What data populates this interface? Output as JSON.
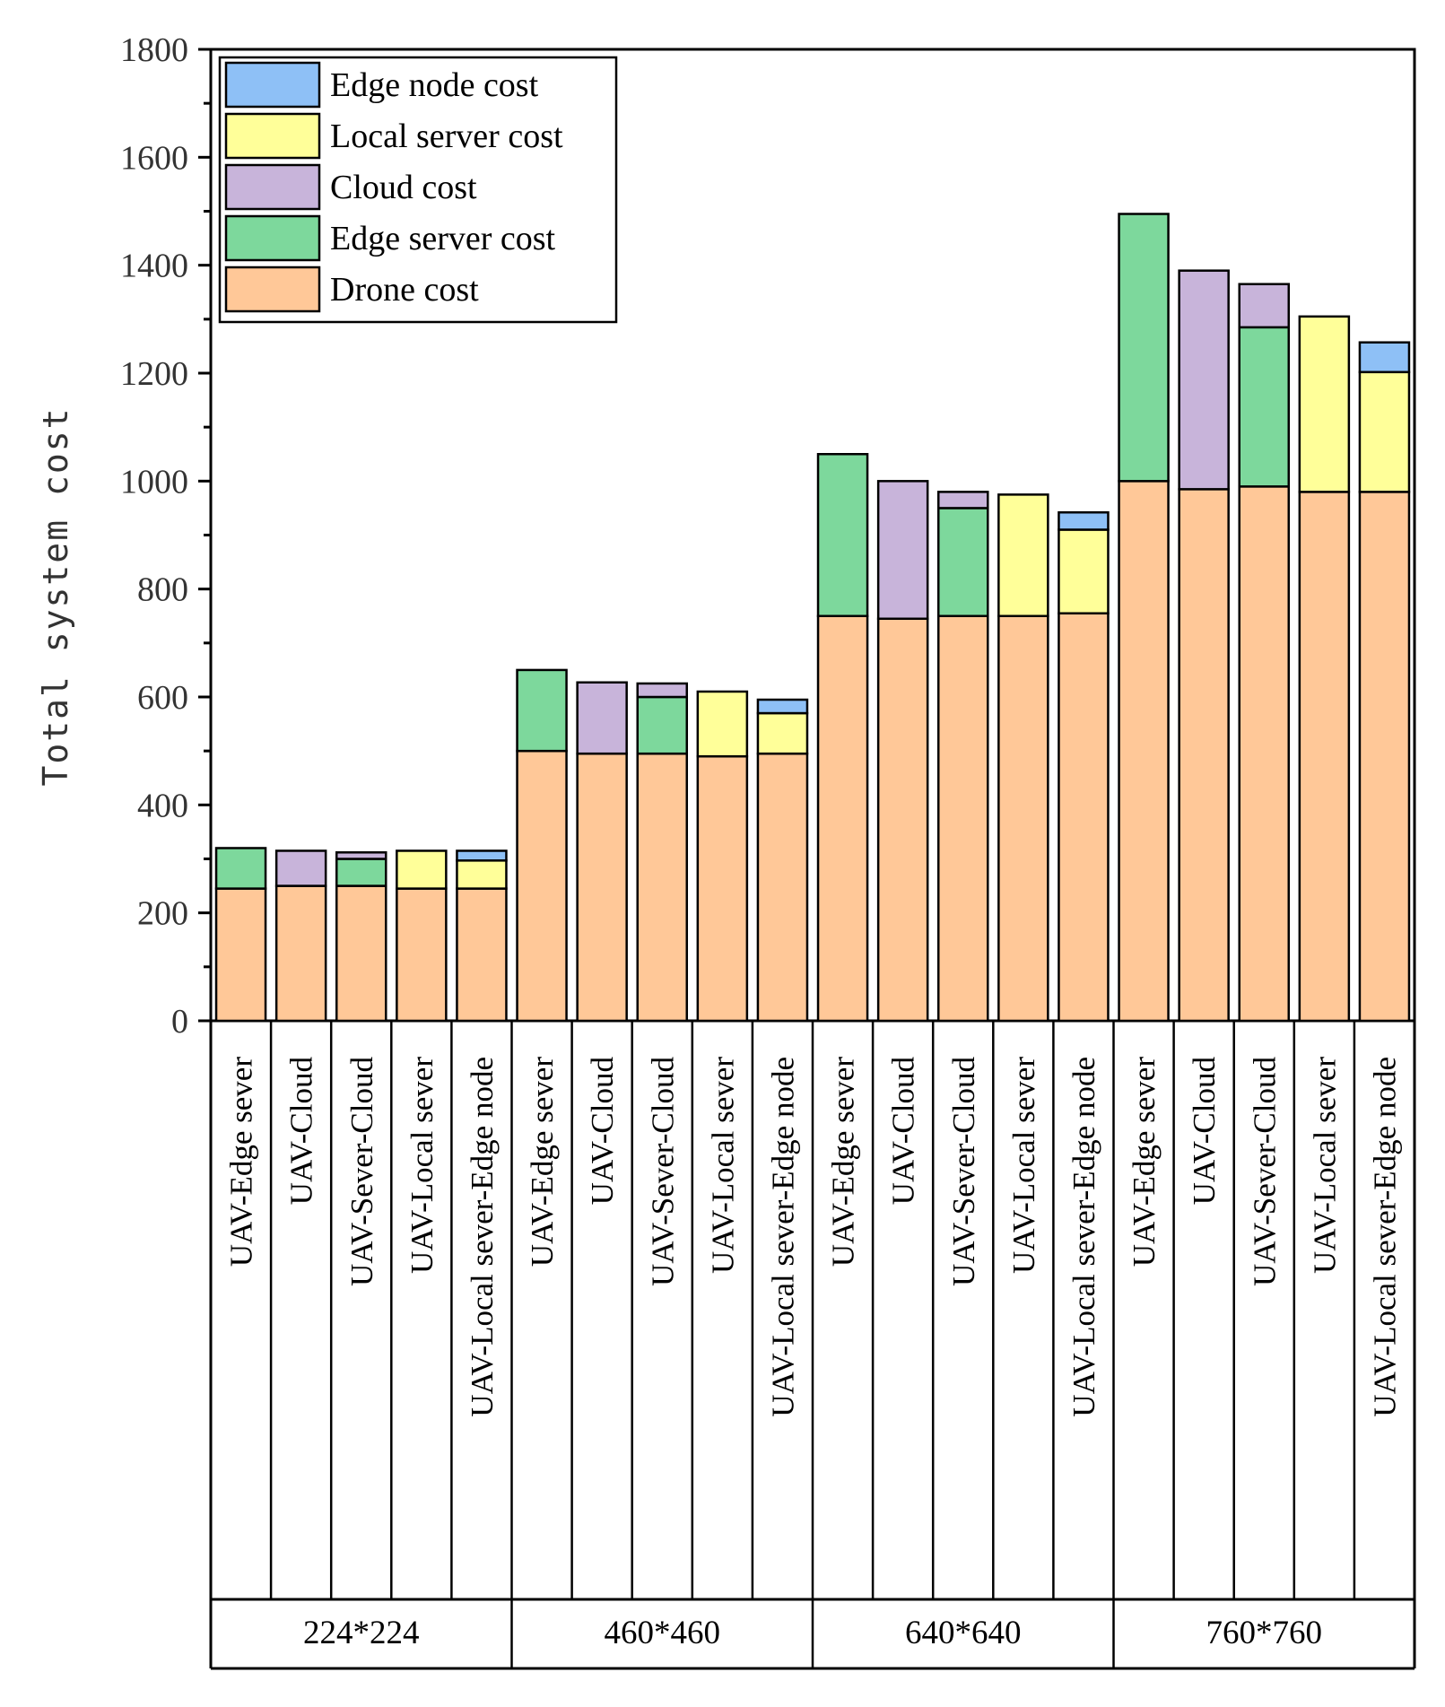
{
  "chart_data": {
    "type": "bar",
    "stacked": true,
    "title": "",
    "xlabel": "",
    "ylabel": "Total system cost",
    "ylim": [
      0,
      1800
    ],
    "yticks": [
      0,
      200,
      400,
      600,
      800,
      1000,
      1200,
      1400,
      1600,
      1800
    ],
    "legend_position": "top-left",
    "groups": [
      "224*224",
      "460*460",
      "640*640",
      "760*760"
    ],
    "categories": [
      "UAV-Edge sever",
      "UAV-Cloud",
      "UAV-Sever-Cloud",
      "UAV-Local sever",
      "UAV-Local sever-Edge node",
      "UAV-Edge sever",
      "UAV-Cloud",
      "UAV-Sever-Cloud",
      "UAV-Local sever",
      "UAV-Local sever-Edge node",
      "UAV-Edge sever",
      "UAV-Cloud",
      "UAV-Sever-Cloud",
      "UAV-Local sever",
      "UAV-Local sever-Edge node",
      "UAV-Edge sever",
      "UAV-Cloud",
      "UAV-Sever-Cloud",
      "UAV-Local sever",
      "UAV-Local sever-Edge node"
    ],
    "series": [
      {
        "name": "Drone cost",
        "color": "#FFC898",
        "values": [
          245,
          250,
          250,
          245,
          245,
          500,
          495,
          495,
          490,
          495,
          750,
          745,
          750,
          750,
          755,
          1000,
          985,
          990,
          980,
          980
        ]
      },
      {
        "name": "Edge server cost",
        "color": "#7DD89C",
        "values": [
          75,
          0,
          50,
          0,
          0,
          150,
          0,
          105,
          0,
          0,
          300,
          0,
          200,
          0,
          0,
          495,
          0,
          295,
          0,
          0
        ]
      },
      {
        "name": "Cloud cost",
        "color": "#C8B4DA",
        "values": [
          0,
          65,
          12,
          0,
          0,
          0,
          132,
          25,
          0,
          0,
          0,
          255,
          30,
          0,
          0,
          0,
          405,
          80,
          0,
          0
        ]
      },
      {
        "name": "Local server cost",
        "color": "#FFFF99",
        "values": [
          0,
          0,
          0,
          70,
          52,
          0,
          0,
          0,
          120,
          75,
          0,
          0,
          0,
          225,
          155,
          0,
          0,
          0,
          325,
          222
        ]
      },
      {
        "name": "Edge node cost",
        "color": "#8EC0F6",
        "values": [
          0,
          0,
          0,
          0,
          18,
          0,
          0,
          0,
          0,
          25,
          0,
          0,
          0,
          0,
          32,
          0,
          0,
          0,
          0,
          55
        ]
      }
    ],
    "legend_order": [
      "Edge node cost",
      "Local server cost",
      "Cloud cost",
      "Edge server cost",
      "Drone cost"
    ]
  }
}
